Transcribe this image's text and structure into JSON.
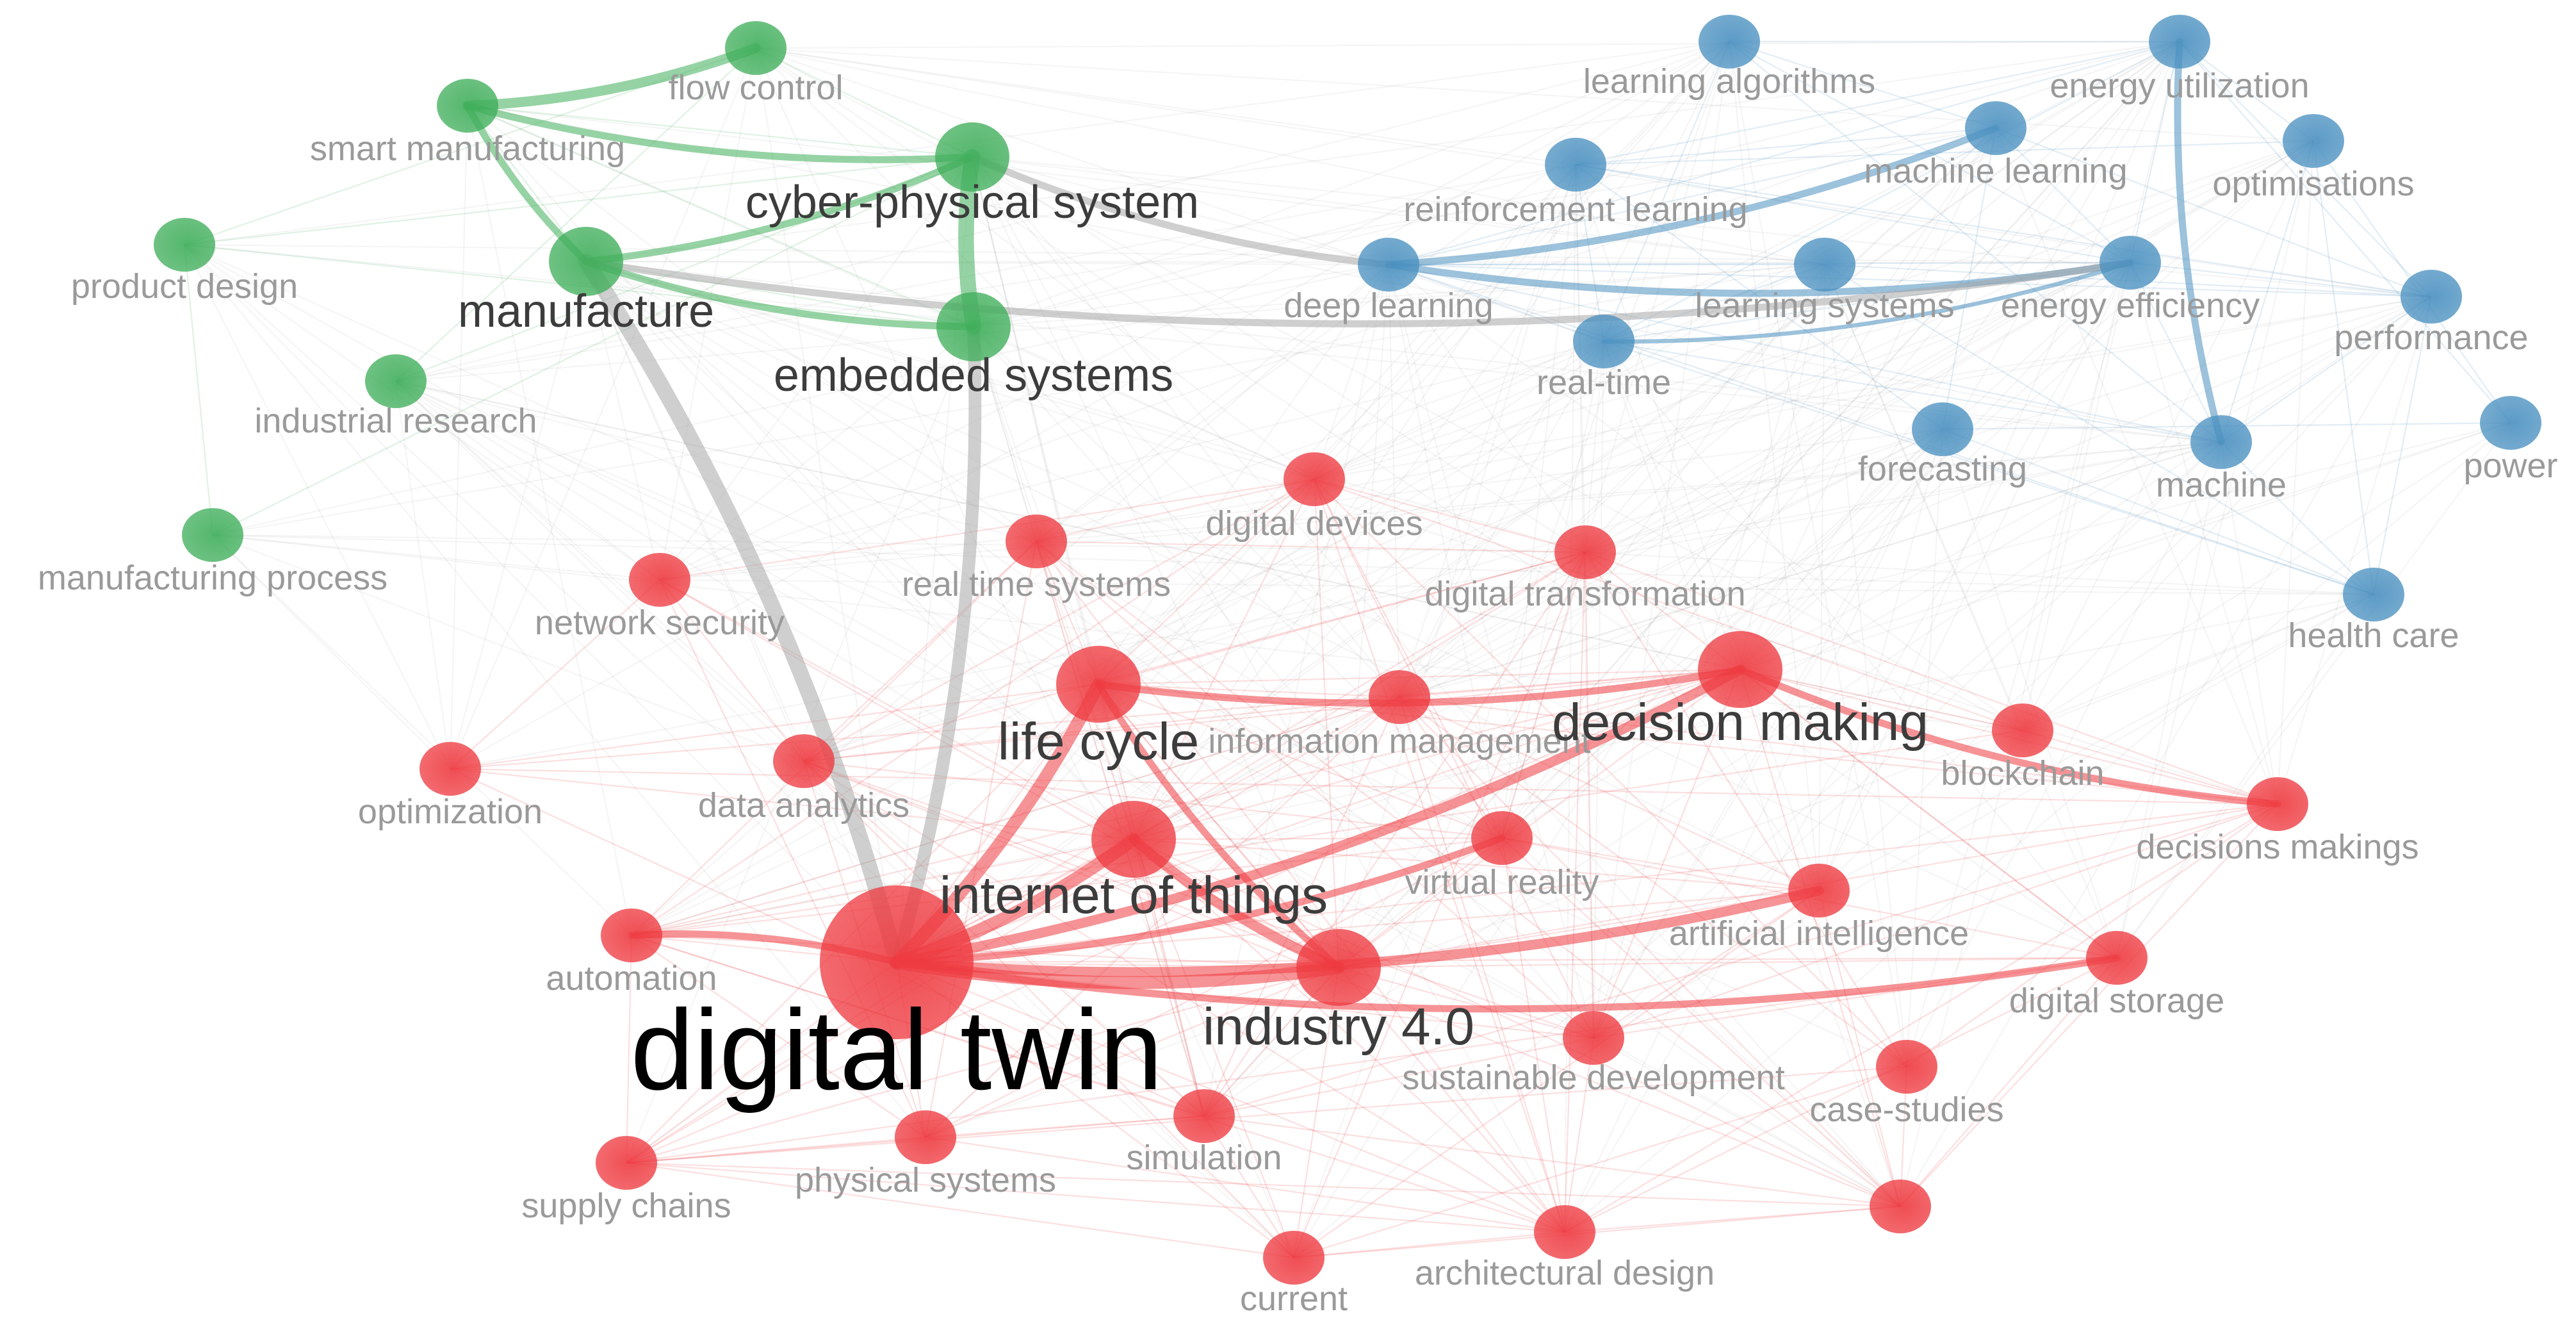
{
  "network": {
    "clusters": [
      {
        "id": "green",
        "color": "#3fae5a"
      },
      {
        "id": "blue",
        "color": "#4a90c0"
      },
      {
        "id": "red",
        "color": "#ee3a40"
      }
    ],
    "nodes": [
      {
        "id": "flow-control",
        "label": "flow control",
        "cluster": "green",
        "weight": 1
      },
      {
        "id": "smart-manufacturing",
        "label": "smart manufacturing",
        "cluster": "green",
        "weight": 1
      },
      {
        "id": "cyber-physical-system",
        "label": "cyber-physical system",
        "cluster": "green",
        "weight": 2
      },
      {
        "id": "product-design",
        "label": "product design",
        "cluster": "green",
        "weight": 1
      },
      {
        "id": "manufacture",
        "label": "manufacture",
        "cluster": "green",
        "weight": 2
      },
      {
        "id": "embedded-systems",
        "label": "embedded systems",
        "cluster": "green",
        "weight": 2
      },
      {
        "id": "industrial-research",
        "label": "industrial research",
        "cluster": "green",
        "weight": 1
      },
      {
        "id": "manufacturing-process",
        "label": "manufacturing process",
        "cluster": "green",
        "weight": 1
      },
      {
        "id": "learning-algorithms",
        "label": "learning algorithms",
        "cluster": "blue",
        "weight": 1
      },
      {
        "id": "energy-utilization",
        "label": "energy utilization",
        "cluster": "blue",
        "weight": 1
      },
      {
        "id": "machine-learning",
        "label": "machine learning",
        "cluster": "blue",
        "weight": 1
      },
      {
        "id": "optimisations",
        "label": "optimisations",
        "cluster": "blue",
        "weight": 1
      },
      {
        "id": "reinforcement-learning",
        "label": "reinforcement learning",
        "cluster": "blue",
        "weight": 1
      },
      {
        "id": "deep-learning",
        "label": "deep learning",
        "cluster": "blue",
        "weight": 1
      },
      {
        "id": "learning-systems",
        "label": "learning systems",
        "cluster": "blue",
        "weight": 1
      },
      {
        "id": "energy-efficiency",
        "label": "energy efficiency",
        "cluster": "blue",
        "weight": 1
      },
      {
        "id": "performance",
        "label": "performance",
        "cluster": "blue",
        "weight": 1
      },
      {
        "id": "real-time",
        "label": "real-time",
        "cluster": "blue",
        "weight": 1
      },
      {
        "id": "power",
        "label": "power",
        "cluster": "blue",
        "weight": 1
      },
      {
        "id": "forecasting",
        "label": "forecasting",
        "cluster": "blue",
        "weight": 1
      },
      {
        "id": "machine",
        "label": "machine",
        "cluster": "blue",
        "weight": 1
      },
      {
        "id": "health-care",
        "label": "health care",
        "cluster": "blue",
        "weight": 1
      },
      {
        "id": "digital-devices",
        "label": "digital devices",
        "cluster": "red",
        "weight": 1
      },
      {
        "id": "real-time-systems",
        "label": "real time systems",
        "cluster": "red",
        "weight": 1
      },
      {
        "id": "digital-transformation",
        "label": "digital transformation",
        "cluster": "red",
        "weight": 1
      },
      {
        "id": "network-security",
        "label": "network security",
        "cluster": "red",
        "weight": 1
      },
      {
        "id": "life-cycle",
        "label": "life cycle",
        "cluster": "red",
        "weight": 3
      },
      {
        "id": "information-management",
        "label": "information management",
        "cluster": "red",
        "weight": 1
      },
      {
        "id": "decision-making",
        "label": "decision making",
        "cluster": "red",
        "weight": 3
      },
      {
        "id": "blockchain",
        "label": "blockchain",
        "cluster": "red",
        "weight": 1
      },
      {
        "id": "optimization",
        "label": "optimization",
        "cluster": "red",
        "weight": 1
      },
      {
        "id": "data-analytics",
        "label": "data analytics",
        "cluster": "red",
        "weight": 1
      },
      {
        "id": "decisions-makings",
        "label": "decisions makings",
        "cluster": "red",
        "weight": 1
      },
      {
        "id": "virtual-reality",
        "label": "virtual reality",
        "cluster": "red",
        "weight": 1
      },
      {
        "id": "internet-of-things",
        "label": "internet of things",
        "cluster": "red",
        "weight": 3
      },
      {
        "id": "artificial-intelligence",
        "label": "artificial intelligence",
        "cluster": "red",
        "weight": 1
      },
      {
        "id": "automation",
        "label": "automation",
        "cluster": "red",
        "weight": 1
      },
      {
        "id": "digital-twin",
        "label": "digital twin",
        "cluster": "red",
        "weight": 5
      },
      {
        "id": "industry-4-0",
        "label": "industry 4.0",
        "cluster": "red",
        "weight": 3
      },
      {
        "id": "digital-storage",
        "label": "digital storage",
        "cluster": "red",
        "weight": 1
      },
      {
        "id": "sustainable-development",
        "label": "sustainable development",
        "cluster": "red",
        "weight": 1
      },
      {
        "id": "case-studies",
        "label": "case-studies",
        "cluster": "red",
        "weight": 1
      },
      {
        "id": "simulation",
        "label": "simulation",
        "cluster": "red",
        "weight": 1
      },
      {
        "id": "physical-systems",
        "label": "physical systems",
        "cluster": "red",
        "weight": 1
      },
      {
        "id": "supply-chains",
        "label": "supply chains",
        "cluster": "red",
        "weight": 1
      },
      {
        "id": "architectural-design",
        "label": "architectural design",
        "cluster": "red",
        "weight": 1
      },
      {
        "id": "case-node",
        "label": "",
        "cluster": "red",
        "weight": 1
      },
      {
        "id": "current",
        "label": "current",
        "cluster": "red",
        "weight": 1
      }
    ],
    "strong_links": [
      {
        "source": "digital-twin",
        "target": "manufacture",
        "strength": 5
      },
      {
        "source": "digital-twin",
        "target": "embedded-systems",
        "strength": 4
      },
      {
        "source": "cyber-physical-system",
        "target": "embedded-systems",
        "strength": 5
      },
      {
        "source": "smart-manufacturing",
        "target": "flow-control",
        "strength": 3
      },
      {
        "source": "smart-manufacturing",
        "target": "cyber-physical-system",
        "strength": 2
      },
      {
        "source": "smart-manufacturing",
        "target": "manufacture",
        "strength": 2
      },
      {
        "source": "manufacture",
        "target": "embedded-systems",
        "strength": 2
      },
      {
        "source": "manufacture",
        "target": "cyber-physical-system",
        "strength": 2
      },
      {
        "source": "digital-twin",
        "target": "life-cycle",
        "strength": 4
      },
      {
        "source": "digital-twin",
        "target": "internet-of-things",
        "strength": 4
      },
      {
        "source": "digital-twin",
        "target": "industry-4-0",
        "strength": 4
      },
      {
        "source": "digital-twin",
        "target": "decision-making",
        "strength": 3
      },
      {
        "source": "digital-twin",
        "target": "artificial-intelligence",
        "strength": 3
      },
      {
        "source": "internet-of-things",
        "target": "industry-4-0",
        "strength": 3
      },
      {
        "source": "life-cycle",
        "target": "decision-making",
        "strength": 2
      },
      {
        "source": "life-cycle",
        "target": "industry-4-0",
        "strength": 2
      },
      {
        "source": "decision-making",
        "target": "decisions-makings",
        "strength": 2
      },
      {
        "source": "digital-twin",
        "target": "digital-storage",
        "strength": 2
      },
      {
        "source": "digital-twin",
        "target": "automation",
        "strength": 2
      },
      {
        "source": "digital-twin",
        "target": "virtual-reality",
        "strength": 2
      },
      {
        "source": "deep-learning",
        "target": "machine-learning",
        "strength": 2
      },
      {
        "source": "deep-learning",
        "target": "energy-efficiency",
        "strength": 2
      },
      {
        "source": "energy-utilization",
        "target": "machine",
        "strength": 2
      },
      {
        "source": "real-time",
        "target": "energy-efficiency",
        "strength": 1
      },
      {
        "source": "cyber-physical-system",
        "target": "deep-learning",
        "strength": 2
      },
      {
        "source": "manufacture",
        "target": "energy-efficiency",
        "strength": 2
      }
    ]
  }
}
